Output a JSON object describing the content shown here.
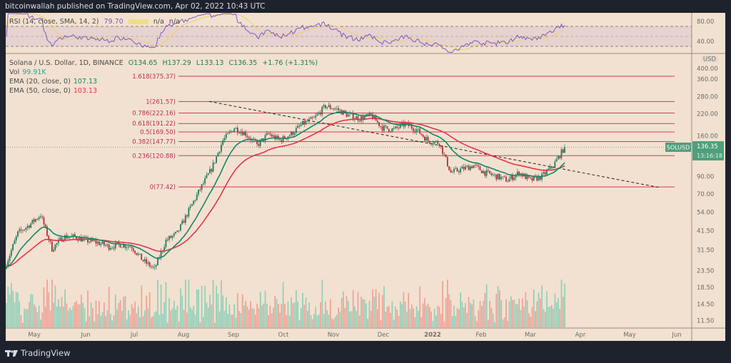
{
  "header": {
    "published": "bitcoinwallah published on TradingView.com, Apr 02, 2022 10:43 UTC"
  },
  "rsi_legend": {
    "label": "RSI (14, close, SMA, 14, 2)",
    "value": "79.70",
    "na1": "n/a",
    "na2": "n/a",
    "colors": {
      "rsi": "#7e57c2",
      "sma": "#f5d76e"
    }
  },
  "legend": {
    "symbol": "Solana / U.S. Dollar, 1D, BINANCE",
    "open": "O134.65",
    "high": "H137.29",
    "low": "L133.13",
    "close": "C136.35",
    "change": "+1.76 (+1.31%)",
    "vol_label": "Vol",
    "vol_value": "99.91K",
    "ema20_label": "EMA (20, close, 0)",
    "ema20_value": "107.13",
    "ema50_label": "EMA (50, close, 0)",
    "ema50_value": "103.13"
  },
  "colors": {
    "up": "#1f7a5c",
    "down": "#a8323a",
    "ema20": "#13876a",
    "ema50": "#e3344c",
    "fib": "#d8375b",
    "background": "#f2e1d0",
    "frame": "#1e222d"
  },
  "price_axis": {
    "currency": "USD",
    "ticks": [
      "360.00",
      "280.00",
      "220.00",
      "160.00",
      "90.00",
      "70.00",
      "54.00",
      "41.50",
      "31.50",
      "23.50",
      "18.50",
      "14.50",
      "11.50"
    ],
    "partial_tick": "400.00",
    "scale": "log"
  },
  "rsi_axis": {
    "ticks": [
      "80.00",
      "40.00"
    ]
  },
  "price_tag": {
    "symbol": "SOLUSD",
    "price": "136.35",
    "countdown": "13:16:18"
  },
  "time_axis": {
    "labels": [
      "May",
      "Jun",
      "Jul",
      "Aug",
      "Sep",
      "Oct",
      "Nov",
      "Dec",
      "2022",
      "Feb",
      "Mar",
      "Apr",
      "May",
      "Jun"
    ]
  },
  "fib_levels": [
    {
      "label": "1.618(375.37)",
      "price": 375.37
    },
    {
      "label": "1(261.57)",
      "price": 261.57
    },
    {
      "label": "0.786(222.16)",
      "price": 222.16
    },
    {
      "label": "0.618(191.22)",
      "price": 191.22
    },
    {
      "label": "0.5(169.50)",
      "price": 169.5
    },
    {
      "label": "0.382(147.77)",
      "price": 147.77
    },
    {
      "label": "0.236(120.88)",
      "price": 120.88
    },
    {
      "label": "0(77.42)",
      "price": 77.42
    }
  ],
  "trendline": {
    "from": [
      "2021-08-27",
      262
    ],
    "to": [
      "2022-05-30",
      77
    ],
    "style": "dashed"
  },
  "chart_data": {
    "type": "candlestick",
    "symbol": "SOLUSD",
    "yscale": "log",
    "ylim": [
      10,
      420
    ],
    "approx_weekly_closes": [
      [
        "2021-04-24",
        26
      ],
      [
        "2021-05-01",
        40
      ],
      [
        "2021-05-08",
        45
      ],
      [
        "2021-05-15",
        52
      ],
      [
        "2021-05-22",
        32
      ],
      [
        "2021-05-29",
        38
      ],
      [
        "2021-06-05",
        38
      ],
      [
        "2021-06-12",
        36
      ],
      [
        "2021-06-19",
        35
      ],
      [
        "2021-06-26",
        33
      ],
      [
        "2021-07-03",
        34
      ],
      [
        "2021-07-10",
        33
      ],
      [
        "2021-07-17",
        27
      ],
      [
        "2021-07-24",
        24
      ],
      [
        "2021-07-31",
        36
      ],
      [
        "2021-08-07",
        40
      ],
      [
        "2021-08-14",
        55
      ],
      [
        "2021-08-21",
        75
      ],
      [
        "2021-08-28",
        100
      ],
      [
        "2021-09-04",
        150
      ],
      [
        "2021-09-11",
        180
      ],
      [
        "2021-09-18",
        165
      ],
      [
        "2021-09-25",
        140
      ],
      [
        "2021-10-02",
        165
      ],
      [
        "2021-10-09",
        150
      ],
      [
        "2021-10-16",
        165
      ],
      [
        "2021-10-23",
        190
      ],
      [
        "2021-10-30",
        205
      ],
      [
        "2021-11-06",
        245
      ],
      [
        "2021-11-13",
        235
      ],
      [
        "2021-11-20",
        215
      ],
      [
        "2021-11-27",
        205
      ],
      [
        "2021-12-04",
        215
      ],
      [
        "2021-12-11",
        180
      ],
      [
        "2021-12-18",
        175
      ],
      [
        "2021-12-25",
        190
      ],
      [
        "2022-01-01",
        175
      ],
      [
        "2022-01-08",
        150
      ],
      [
        "2022-01-15",
        145
      ],
      [
        "2022-01-22",
        95
      ],
      [
        "2022-01-29",
        100
      ],
      [
        "2022-02-05",
        105
      ],
      [
        "2022-02-12",
        95
      ],
      [
        "2022-02-19",
        90
      ],
      [
        "2022-02-26",
        85
      ],
      [
        "2022-03-05",
        95
      ],
      [
        "2022-03-12",
        85
      ],
      [
        "2022-03-19",
        90
      ],
      [
        "2022-03-26",
        105
      ],
      [
        "2022-04-02",
        136.35
      ]
    ]
  },
  "footer": {
    "brand": "TradingView"
  }
}
